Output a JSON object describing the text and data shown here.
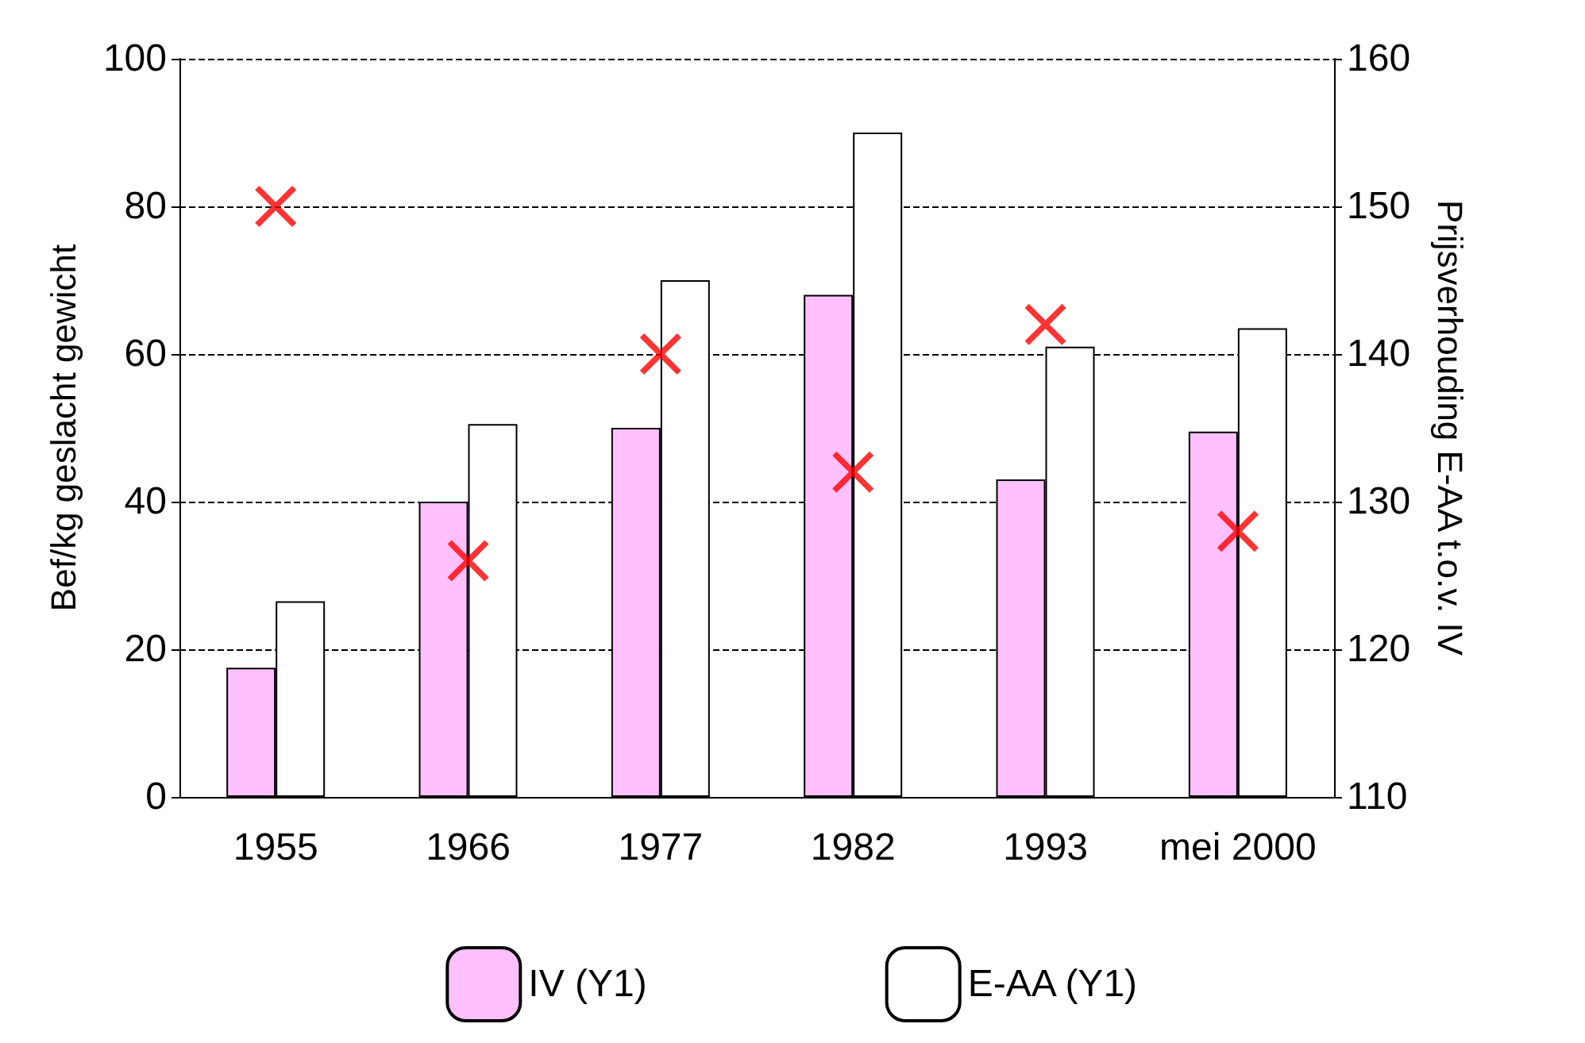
{
  "chart_data": {
    "type": "bar",
    "categories": [
      "1955",
      "1966",
      "1977",
      "1982",
      "1993",
      "mei 2000"
    ],
    "ylabel": "Bef/kg geslacht gewicht",
    "y2label": "Prijsverhouding E-AA t.o.v. IV",
    "ylim": [
      0,
      100
    ],
    "yticks": [
      0,
      20,
      40,
      60,
      80,
      100
    ],
    "y2lim": [
      110,
      160
    ],
    "y2ticks": [
      110,
      120,
      130,
      140,
      150,
      160
    ],
    "grid": "y",
    "legend": "bottom",
    "series": [
      {
        "name": "IV (Y1)",
        "color": "#ffc0ff",
        "values": [
          17.5,
          40,
          50,
          68,
          43,
          49.5
        ]
      },
      {
        "name": "E-AA (Y1)",
        "color": "#ffffff",
        "values": [
          26.5,
          50.5,
          70,
          90,
          61,
          63.5
        ]
      },
      {
        "type": "scatter",
        "axis": "y2",
        "color": "#ff0000",
        "marker": "cross",
        "values": [
          150,
          126,
          140,
          132,
          142,
          128
        ]
      }
    ]
  }
}
